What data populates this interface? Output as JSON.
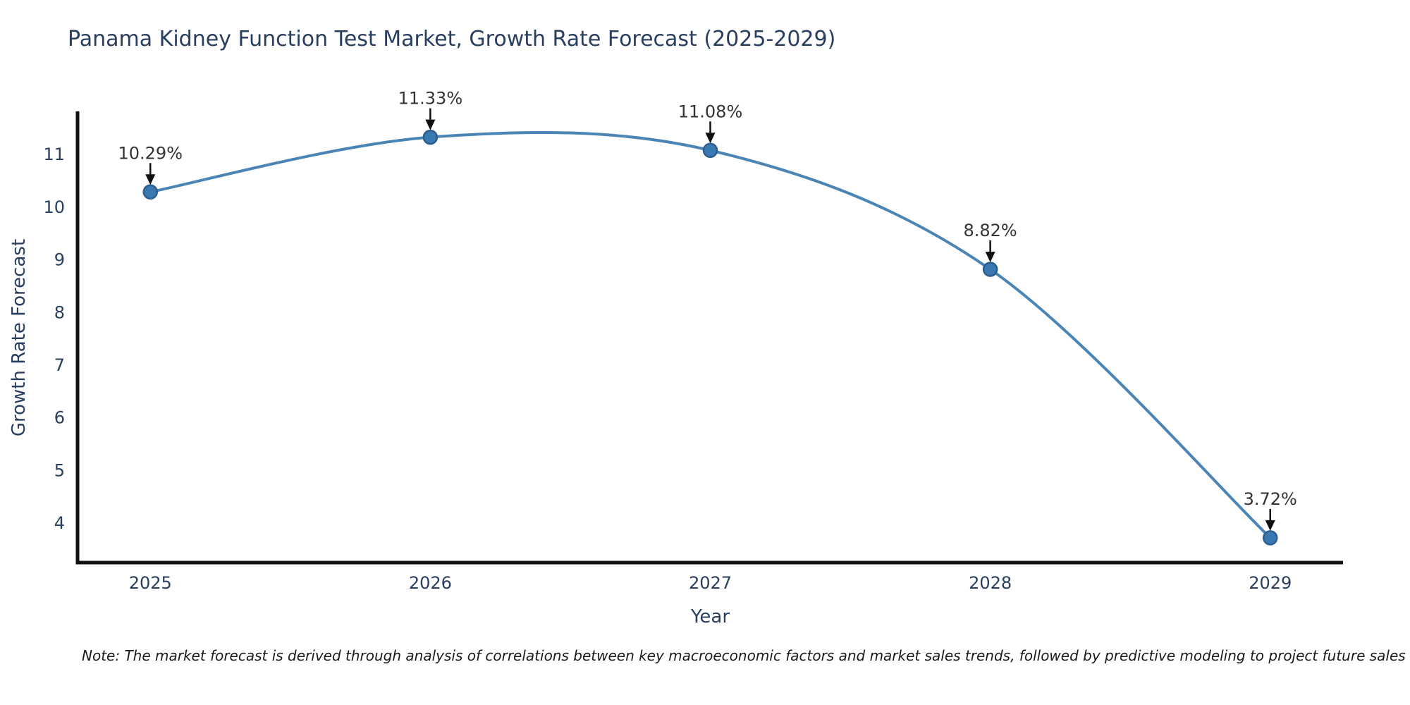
{
  "page": {
    "background": "#ffffff"
  },
  "chart_data": {
    "type": "line",
    "title": "Panama Kidney Function Test Market, Growth Rate Forecast (2025-2029)",
    "xlabel": "Year",
    "ylabel": "Growth Rate Forecast",
    "x": [
      2025,
      2026,
      2027,
      2028,
      2029
    ],
    "values": [
      10.29,
      11.33,
      11.08,
      8.82,
      3.72
    ],
    "point_labels": [
      "10.29%",
      "11.33%",
      "11.08%",
      "8.82%",
      "3.72%"
    ],
    "xtick_labels": [
      "2025",
      "2026",
      "2027",
      "2028",
      "2029"
    ],
    "ytick_values": [
      4,
      5,
      6,
      7,
      8,
      9,
      10,
      11
    ],
    "xlim": [
      2024.74,
      2029.26
    ],
    "ylim": [
      3.25,
      11.82
    ],
    "grid": false,
    "legend": "none",
    "line_shape": "spline",
    "annotation_style": "arrow-down-to-point",
    "colors": {
      "line": "#4a85b6",
      "marker_fill": "#3a78b2",
      "marker_edge": "#2b5f8e",
      "axis": "#111111",
      "tick_text": "#2a3f5f",
      "title_text": "#2a3f5f",
      "annotation_text": "#333333",
      "arrow": "#111111"
    }
  },
  "note": {
    "text": "Note: The market forecast is derived through analysis of correlations between key macroeconomic factors and market sales trends, followed by predictive modeling to project future sales"
  }
}
